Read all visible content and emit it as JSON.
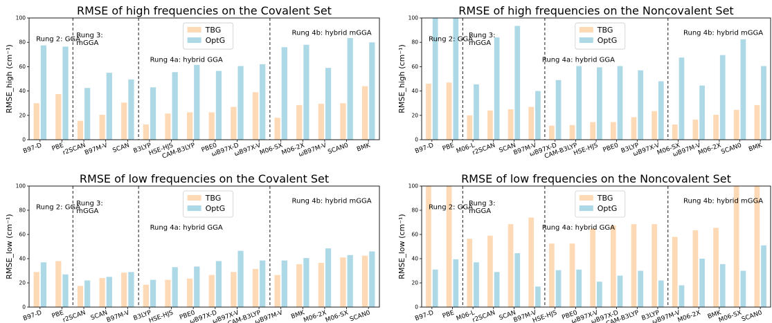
{
  "colors": {
    "tbg": "#fdd9b5",
    "optg": "#add8e6"
  },
  "chart_data": [
    {
      "type": "bar",
      "title": "RMSE of high frequencies on the Covalent Set",
      "ylabel": "RMSE_high (cm⁻¹)",
      "ylim": [
        0,
        100
      ],
      "yticks": [
        0,
        20,
        40,
        60,
        80,
        100
      ],
      "categories": [
        "B97-D",
        "PBE",
        "r2SCAN",
        "B97M-V",
        "SCAN",
        "B3LYP",
        "HSE-HJS",
        "CAM-B3LYP",
        "PBE0",
        "ωB97X-D",
        "ωB97X-V",
        "M06-SX",
        "M06-2X",
        "ωB97M-V",
        "SCAN0",
        "BMK"
      ],
      "series": [
        {
          "name": "TBG",
          "values": [
            30,
            37.5,
            15.5,
            20.5,
            30.5,
            12.5,
            21.5,
            22.5,
            22.5,
            27,
            39,
            18,
            28.5,
            29.5,
            30,
            44
          ]
        },
        {
          "name": "OptG",
          "values": [
            77.5,
            76.5,
            42.5,
            55,
            49.5,
            43,
            55.5,
            61.5,
            56.5,
            60.5,
            62,
            76,
            78,
            59,
            83.5,
            80
          ]
        }
      ],
      "legend": [
        "TBG",
        "OptG"
      ],
      "legend_position": "top-center",
      "separators_after": [
        1,
        4,
        10
      ],
      "groups": [
        {
          "label_lines": [
            "Rung 2: GGA"
          ],
          "y": 81
        },
        {
          "label_lines": [
            "Rung 3:",
            "mGGA"
          ],
          "y": 84
        },
        {
          "label_lines": [
            "Rung 4a: hybrid GGA"
          ],
          "y": 64
        },
        {
          "label_lines": [
            "Rung 4b: hybrid mGGA"
          ],
          "y": 86
        }
      ]
    },
    {
      "type": "bar",
      "title": "RMSE of high frequencies on the Noncovalent Set",
      "ylabel": "RMSE_high (cm⁻¹)",
      "ylim": [
        0,
        100
      ],
      "yticks": [
        0,
        20,
        40,
        60,
        80,
        100
      ],
      "categories": [
        "B97-D",
        "PBE",
        "M06-L",
        "r2SCAN",
        "SCAN",
        "B97M-V",
        "ωB97X-D",
        "CAM-B3LYP",
        "HSE-HJS",
        "PBE0",
        "B3LYP",
        "ωB97X-V",
        "M06-SX",
        "ωB97M-V",
        "M06-2X",
        "SCAN0",
        "BMK"
      ],
      "series": [
        {
          "name": "TBG",
          "values": [
            46,
            47,
            20,
            24,
            25,
            27,
            11.5,
            12,
            14.5,
            14.5,
            18.5,
            23.5,
            12.5,
            16.5,
            20.5,
            24.5,
            28.5
          ]
        },
        {
          "name": "OptG",
          "values": [
            100,
            100,
            45.5,
            84,
            93.5,
            40,
            49,
            60.5,
            59.5,
            60.5,
            57,
            48,
            67.5,
            44.5,
            69.5,
            82.5,
            60.5
          ]
        }
      ],
      "legend": [
        "TBG",
        "OptG"
      ],
      "legend_position": "top-center",
      "separators_after": [
        1,
        5,
        11
      ],
      "groups": [
        {
          "label_lines": [
            "Rung 2: GGA"
          ],
          "y": 81
        },
        {
          "label_lines": [
            "Rung 3:",
            "mGGA"
          ],
          "y": 84
        },
        {
          "label_lines": [
            "Rung 4a: hybrid GGA"
          ],
          "y": 64
        },
        {
          "label_lines": [
            "Rung 4b: hybrid mGGA"
          ],
          "y": 86
        }
      ]
    },
    {
      "type": "bar",
      "title": "RMSE of low frequencies on the Covalent Set",
      "ylabel": "RMSE_low (cm⁻¹)",
      "ylim": [
        0,
        100
      ],
      "yticks": [
        0,
        20,
        40,
        60,
        80,
        100
      ],
      "categories": [
        "B97-D",
        "PBE",
        "r2SCAN",
        "SCAN",
        "B97M-V",
        "B3LYP",
        "HSE-HJS",
        "PBE0",
        "ωB97X-D",
        "ωB97X-V",
        "CAM-B3LYP",
        "ωB97M-V",
        "BMK",
        "M06-2X",
        "M06-SX",
        "SCAN0"
      ],
      "series": [
        {
          "name": "TBG",
          "values": [
            29,
            38,
            17.5,
            24,
            28.5,
            18.5,
            22.5,
            23.5,
            26.5,
            29,
            31.5,
            26.5,
            35.5,
            36.5,
            41,
            42.5
          ]
        },
        {
          "name": "OptG",
          "values": [
            37,
            27,
            22,
            25,
            29,
            22.5,
            33,
            33.5,
            38,
            46.5,
            38.5,
            38.5,
            40.5,
            48.5,
            43,
            46
          ]
        }
      ],
      "legend": [
        "TBG",
        "OptG"
      ],
      "legend_position": "top-center",
      "separators_after": [
        1,
        4,
        10
      ],
      "groups": [
        {
          "label_lines": [
            "Rung 2: GGA"
          ],
          "y": 81
        },
        {
          "label_lines": [
            "Rung 3:",
            "mGGA"
          ],
          "y": 84
        },
        {
          "label_lines": [
            "Rung 4a: hybrid GGA"
          ],
          "y": 64
        },
        {
          "label_lines": [
            "Rung 4b: hybrid mGGA"
          ],
          "y": 86
        }
      ]
    },
    {
      "type": "bar",
      "title": "RMSE of low frequencies on the Noncovalent Set",
      "ylabel": "RMSE_low (cm⁻¹)",
      "ylim": [
        0,
        100
      ],
      "yticks": [
        0,
        20,
        40,
        60,
        80,
        100
      ],
      "categories": [
        "B97-D",
        "PBE",
        "M06-L",
        "r2SCAN",
        "SCAN",
        "B97M-V",
        "HSE-HJS",
        "PBE0",
        "ωB97X-V",
        "ωB97X-D",
        "CAM-B3LYP",
        "B3LYP",
        "ωB97M-V",
        "M06-2X",
        "BMK",
        "M06-SX",
        "SCAN0"
      ],
      "series": [
        {
          "name": "TBG",
          "values": [
            100,
            100,
            56.5,
            59,
            68.5,
            74,
            52.5,
            52.5,
            65,
            67.5,
            68.5,
            68.5,
            58,
            63.5,
            65.5,
            100,
            100
          ]
        },
        {
          "name": "OptG",
          "values": [
            31,
            39.5,
            37,
            29,
            44.5,
            17,
            30.5,
            31,
            21,
            26,
            30,
            22,
            18,
            40,
            35.5,
            30,
            51
          ]
        }
      ],
      "legend": [
        "TBG",
        "OptG"
      ],
      "legend_position": "top-center",
      "separators_after": [
        1,
        5,
        11
      ],
      "groups": [
        {
          "label_lines": [
            "Rung 2: GGA"
          ],
          "y": 81
        },
        {
          "label_lines": [
            "Rung 3:",
            "mGGA"
          ],
          "y": 84
        },
        {
          "label_lines": [
            "Rung 4a: hybrid GGA"
          ],
          "y": 64
        },
        {
          "label_lines": [
            "Rung 4b: hybrid mGGA"
          ],
          "y": 86
        }
      ]
    }
  ]
}
